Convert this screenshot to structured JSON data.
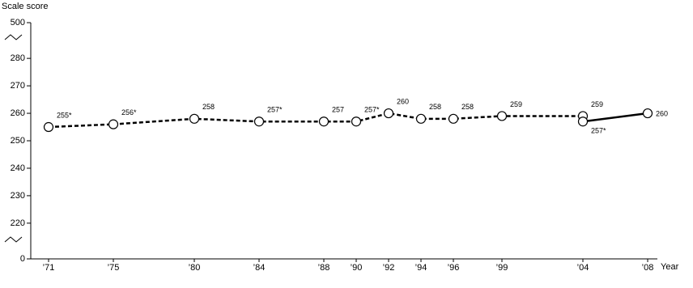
{
  "chart_data": {
    "type": "line",
    "y_label": "Scale score",
    "x_label": "Year",
    "x": [
      1971,
      1975,
      1980,
      1984,
      1988,
      1990,
      1992,
      1994,
      1996,
      1999,
      2004,
      2008
    ],
    "xlim": [
      1970,
      2008.5
    ],
    "xticks": [
      {
        "value": 1971,
        "label": "’71"
      },
      {
        "value": 1975,
        "label": "’75"
      },
      {
        "value": 1980,
        "label": "’80"
      },
      {
        "value": 1984,
        "label": "’84"
      },
      {
        "value": 1988,
        "label": "’88"
      },
      {
        "value": 1990,
        "label": "’90"
      },
      {
        "value": 1992,
        "label": "’92"
      },
      {
        "value": 1994,
        "label": "’94"
      },
      {
        "value": 1996,
        "label": "’96"
      },
      {
        "value": 1999,
        "label": "’99"
      },
      {
        "value": 2004,
        "label": "’04"
      },
      {
        "value": 2008,
        "label": "’08"
      }
    ],
    "ylim": [
      207,
      293
    ],
    "yticks": [
      0,
      220,
      230,
      240,
      250,
      260,
      270,
      280,
      500
    ],
    "axis_break": true,
    "series": [
      {
        "color": "#000000",
        "dashed": true,
        "values": [
          255,
          256,
          258,
          257,
          257,
          257,
          260,
          258,
          258,
          259,
          259,
          null
        ],
        "value_labels": [
          "255*",
          "256*",
          "258",
          "257*",
          "257",
          "257*",
          "260",
          "258",
          "258",
          "259",
          "259",
          null
        ]
      },
      {
        "color": "#000000",
        "dashed": false,
        "values": [
          null,
          null,
          null,
          null,
          null,
          null,
          null,
          null,
          null,
          null,
          257,
          260
        ],
        "value_labels": [
          null,
          null,
          null,
          null,
          null,
          null,
          null,
          null,
          null,
          null,
          "257*",
          "260"
        ]
      }
    ]
  }
}
